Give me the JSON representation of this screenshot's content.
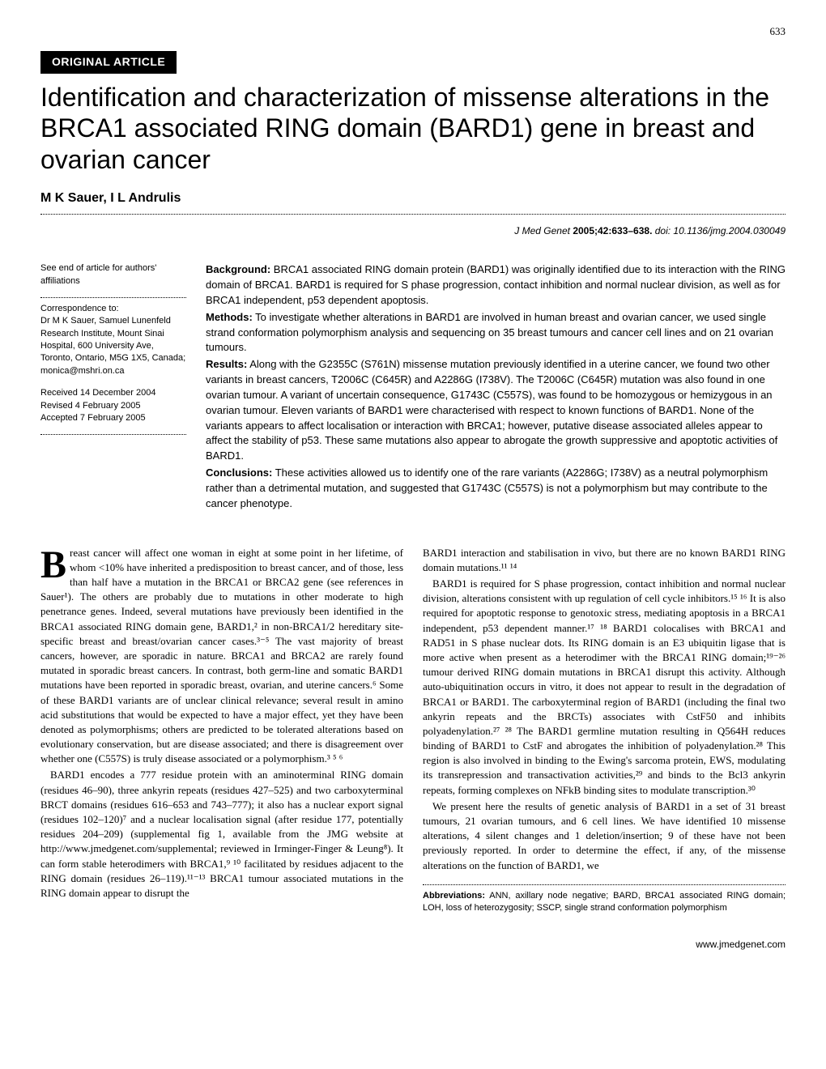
{
  "page_number": "633",
  "article_tag": "ORIGINAL ARTICLE",
  "title": "Identification and characterization of missense alterations in the BRCA1 associated RING domain (BARD1) gene in breast and ovarian cancer",
  "authors": "M K Sauer, I L Andrulis",
  "citation": {
    "journal": "J Med Genet",
    "year_vol": "2005;42:633–638.",
    "doi": "doi: 10.1136/jmg.2004.030049"
  },
  "sidebar": {
    "affiliations_note": "See end of article for authors' affiliations",
    "correspondence_label": "Correspondence to:",
    "correspondence_text": "Dr M K Sauer, Samuel Lunenfeld Research Institute, Mount Sinai Hospital, 600 University Ave, Toronto, Ontario, M5G 1X5, Canada; monica@mshri.on.ca",
    "received": "Received 14 December 2004",
    "revised": "Revised 4 February 2005",
    "accepted": "Accepted 7 February 2005"
  },
  "abstract": {
    "background_label": "Background:",
    "background": " BRCA1 associated RING domain protein (BARD1) was originally identified due to its interaction with the RING domain of BRCA1. BARD1 is required for S phase progression, contact inhibition and normal nuclear division, as well as for BRCA1 independent, p53 dependent apoptosis.",
    "methods_label": "Methods:",
    "methods": " To investigate whether alterations in BARD1 are involved in human breast and ovarian cancer, we used single strand conformation polymorphism analysis and sequencing on 35 breast tumours and cancer cell lines and on 21 ovarian tumours.",
    "results_label": "Results:",
    "results": " Along with the G2355C (S761N) missense mutation previously identified in a uterine cancer, we found two other variants in breast cancers, T2006C (C645R) and A2286G (I738V). The T2006C (C645R) mutation was also found in one ovarian tumour. A variant of uncertain consequence, G1743C (C557S), was found to be homozygous or hemizygous in an ovarian tumour. Eleven variants of BARD1 were characterised with respect to known functions of BARD1. None of the variants appears to affect localisation or interaction with BRCA1; however, putative disease associated alleles appear to affect the stability of p53. These same mutations also appear to abrogate the growth suppressive and apoptotic activities of BARD1.",
    "conclusions_label": "Conclusions:",
    "conclusions": " These activities allowed us to identify one of the rare variants (A2286G; I738V) as a neutral polymorphism rather than a detrimental mutation, and suggested that G1743C (C557S) is not a polymorphism but may contribute to the cancer phenotype."
  },
  "body": {
    "col1_p1": "reast cancer will affect one woman in eight at some point in her lifetime, of whom <10% have inherited a predisposition to breast cancer, and of those, less than half have a mutation in the BRCA1 or BRCA2 gene (see references in Sauer¹). The others are probably due to mutations in other moderate to high penetrance genes. Indeed, several mutations have previously been identified in the BRCA1 associated RING domain gene, BARD1,² in non-BRCA1/2 hereditary site-specific breast and breast/ovarian cancer cases.³⁻⁵ The vast majority of breast cancers, however, are sporadic in nature. BRCA1 and BRCA2 are rarely found mutated in sporadic breast cancers. In contrast, both germ-line and somatic BARD1 mutations have been reported in sporadic breast, ovarian, and uterine cancers.⁶ Some of these BARD1 variants are of unclear clinical relevance; several result in amino acid substitutions that would be expected to have a major effect, yet they have been denoted as polymorphisms; others are predicted to be tolerated alterations based on evolutionary conservation, but are disease associated; and there is disagreement over whether one (C557S) is truly disease associated or a polymorphism.³ ⁵ ⁶",
    "col1_p2": "BARD1 encodes a 777 residue protein with an aminoterminal RING domain (residues 46–90), three ankyrin repeats (residues 427–525) and two carboxyterminal BRCT domains (residues 616–653 and 743–777); it also has a nuclear export signal (residues 102–120)⁷ and a nuclear localisation signal (after residue 177, potentially residues 204–209) (supplemental fig 1, available from the JMG website at http://www.jmedgenet.com/supplemental; reviewed in Irminger-Finger & Leung⁸). It can form stable heterodimers with BRCA1,⁹ ¹⁰ facilitated by residues adjacent to the RING domain (residues 26–119).¹¹⁻¹³ BRCA1 tumour associated mutations in the RING domain appear to disrupt the",
    "col2_p1": "BARD1 interaction and stabilisation in vivo, but there are no known BARD1 RING domain mutations.¹¹ ¹⁴",
    "col2_p2": "BARD1 is required for S phase progression, contact inhibition and normal nuclear division, alterations consistent with up regulation of cell cycle inhibitors.¹⁵ ¹⁶ It is also required for apoptotic response to genotoxic stress, mediating apoptosis in a BRCA1 independent, p53 dependent manner.¹⁷ ¹⁸ BARD1 colocalises with BRCA1 and RAD51 in S phase nuclear dots. Its RING domain is an E3 ubiquitin ligase that is more active when present as a heterodimer with the BRCA1 RING domain;¹⁹⁻²⁶ tumour derived RING domain mutations in BRCA1 disrupt this activity. Although auto-ubiquitination occurs in vitro, it does not appear to result in the degradation of BRCA1 or BARD1. The carboxyterminal region of BARD1 (including the final two ankyrin repeats and the BRCTs) associates with CstF50 and inhibits polyadenylation.²⁷ ²⁸ The BARD1 germline mutation resulting in Q564H reduces binding of BARD1 to CstF and abrogates the inhibition of polyadenylation.²⁸ This region is also involved in binding to the Ewing's sarcoma protein, EWS, modulating its transrepression and transactivation activities,²⁹ and binds to the Bcl3 ankyrin repeats, forming complexes on NFkB binding sites to modulate transcription.³⁰",
    "col2_p3": "We present here the results of genetic analysis of BARD1 in a set of 31 breast tumours, 21 ovarian tumours, and 6 cell lines. We have identified 10 missense alterations, 4 silent changes and 1 deletion/insertion; 9 of these have not been previously reported. In order to determine the effect, if any, of the missense alterations on the function of BARD1, we"
  },
  "abbreviations": {
    "label": "Abbreviations:",
    "text": " ANN, axillary node negative; BARD, BRCA1 associated RING domain; LOH, loss of heterozygosity; SSCP, single strand conformation polymorphism"
  },
  "footer_url": "www.jmedgenet.com"
}
